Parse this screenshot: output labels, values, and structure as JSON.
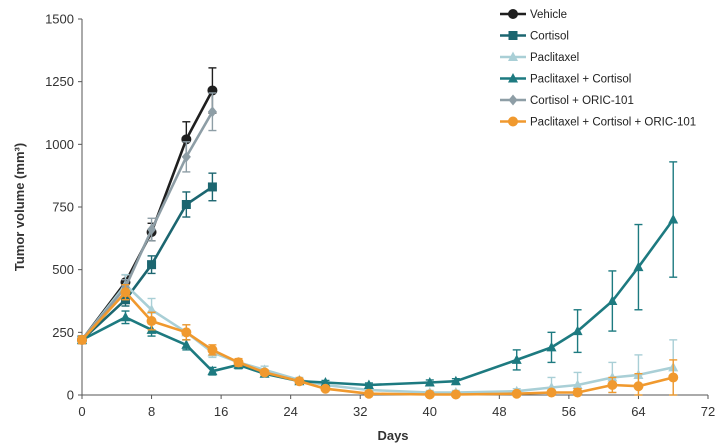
{
  "chart_data": {
    "type": "line",
    "title": "",
    "xlabel": "Days",
    "ylabel": "Tumor volume (mm³)",
    "xlim": [
      0,
      72
    ],
    "ylim": [
      0,
      1500
    ],
    "xticks": [
      0,
      8,
      16,
      24,
      32,
      40,
      48,
      56,
      64,
      72
    ],
    "yticks": [
      0,
      250,
      500,
      750,
      1000,
      1250,
      1500
    ],
    "grid": false,
    "legend_position": "top-right",
    "series": [
      {
        "name": "Vehicle",
        "color": "#1f1f1f",
        "marker": "circle",
        "points": [
          {
            "x": 0,
            "y": 220,
            "err": 15
          },
          {
            "x": 5,
            "y": 450,
            "err": 30
          },
          {
            "x": 8,
            "y": 650,
            "err": 35
          },
          {
            "x": 12,
            "y": 1020,
            "err": 70
          },
          {
            "x": 15,
            "y": 1215,
            "err": 90
          }
        ]
      },
      {
        "name": "Cortisol",
        "color": "#1c6670",
        "marker": "square",
        "points": [
          {
            "x": 0,
            "y": 220,
            "err": 15
          },
          {
            "x": 5,
            "y": 380,
            "err": 25
          },
          {
            "x": 8,
            "y": 520,
            "err": 35
          },
          {
            "x": 12,
            "y": 760,
            "err": 50
          },
          {
            "x": 15,
            "y": 830,
            "err": 55
          }
        ]
      },
      {
        "name": "Paclitaxel",
        "color": "#a9cfd6",
        "marker": "triangle",
        "points": [
          {
            "x": 0,
            "y": 220,
            "err": 15
          },
          {
            "x": 5,
            "y": 440,
            "err": 40
          },
          {
            "x": 8,
            "y": 340,
            "err": 45
          },
          {
            "x": 12,
            "y": 250,
            "err": 30
          },
          {
            "x": 15,
            "y": 170,
            "err": 20
          },
          {
            "x": 18,
            "y": 130,
            "err": 15
          },
          {
            "x": 21,
            "y": 100,
            "err": 15
          },
          {
            "x": 25,
            "y": 60,
            "err": 10
          },
          {
            "x": 28,
            "y": 40,
            "err": 10
          },
          {
            "x": 33,
            "y": 20,
            "err": 8
          },
          {
            "x": 40,
            "y": 10,
            "err": 8
          },
          {
            "x": 43,
            "y": 10,
            "err": 8
          },
          {
            "x": 50,
            "y": 15,
            "err": 10
          },
          {
            "x": 54,
            "y": 30,
            "err": 40
          },
          {
            "x": 57,
            "y": 40,
            "err": 50
          },
          {
            "x": 61,
            "y": 70,
            "err": 60
          },
          {
            "x": 64,
            "y": 80,
            "err": 80
          },
          {
            "x": 68,
            "y": 110,
            "err": 110
          }
        ]
      },
      {
        "name": "Paclitaxel + Cortisol",
        "color": "#1d7a80",
        "marker": "triangle",
        "points": [
          {
            "x": 0,
            "y": 220,
            "err": 15
          },
          {
            "x": 5,
            "y": 310,
            "err": 25
          },
          {
            "x": 8,
            "y": 260,
            "err": 25
          },
          {
            "x": 12,
            "y": 200,
            "err": 20
          },
          {
            "x": 15,
            "y": 95,
            "err": 15
          },
          {
            "x": 18,
            "y": 120,
            "err": 15
          },
          {
            "x": 21,
            "y": 85,
            "err": 10
          },
          {
            "x": 25,
            "y": 55,
            "err": 8
          },
          {
            "x": 28,
            "y": 50,
            "err": 8
          },
          {
            "x": 33,
            "y": 40,
            "err": 8
          },
          {
            "x": 40,
            "y": 50,
            "err": 10
          },
          {
            "x": 43,
            "y": 55,
            "err": 10
          },
          {
            "x": 50,
            "y": 140,
            "err": 40
          },
          {
            "x": 54,
            "y": 190,
            "err": 60
          },
          {
            "x": 57,
            "y": 255,
            "err": 85
          },
          {
            "x": 61,
            "y": 375,
            "err": 120
          },
          {
            "x": 64,
            "y": 510,
            "err": 170
          },
          {
            "x": 68,
            "y": 700,
            "err": 230
          }
        ]
      },
      {
        "name": "Cortisol + ORIC-101",
        "color": "#8e9ea6",
        "marker": "diamond",
        "points": [
          {
            "x": 0,
            "y": 220,
            "err": 15
          },
          {
            "x": 5,
            "y": 430,
            "err": 30
          },
          {
            "x": 8,
            "y": 660,
            "err": 45
          },
          {
            "x": 12,
            "y": 950,
            "err": 60
          },
          {
            "x": 15,
            "y": 1130,
            "err": 75
          }
        ]
      },
      {
        "name": "Paclitaxel + Cortisol + ORIC-101",
        "color": "#f0992e",
        "marker": "circle",
        "points": [
          {
            "x": 0,
            "y": 220,
            "err": 15
          },
          {
            "x": 5,
            "y": 410,
            "err": 30
          },
          {
            "x": 8,
            "y": 295,
            "err": 35
          },
          {
            "x": 12,
            "y": 250,
            "err": 30
          },
          {
            "x": 15,
            "y": 180,
            "err": 20
          },
          {
            "x": 18,
            "y": 130,
            "err": 15
          },
          {
            "x": 21,
            "y": 90,
            "err": 10
          },
          {
            "x": 25,
            "y": 55,
            "err": 8
          },
          {
            "x": 28,
            "y": 25,
            "err": 6
          },
          {
            "x": 33,
            "y": 5,
            "err": 5
          },
          {
            "x": 40,
            "y": 2,
            "err": 4
          },
          {
            "x": 43,
            "y": 2,
            "err": 4
          },
          {
            "x": 50,
            "y": 5,
            "err": 5
          },
          {
            "x": 54,
            "y": 10,
            "err": 10
          },
          {
            "x": 57,
            "y": 10,
            "err": 15
          },
          {
            "x": 61,
            "y": 40,
            "err": 30
          },
          {
            "x": 64,
            "y": 35,
            "err": 50
          },
          {
            "x": 68,
            "y": 70,
            "err": 70
          }
        ]
      }
    ]
  }
}
